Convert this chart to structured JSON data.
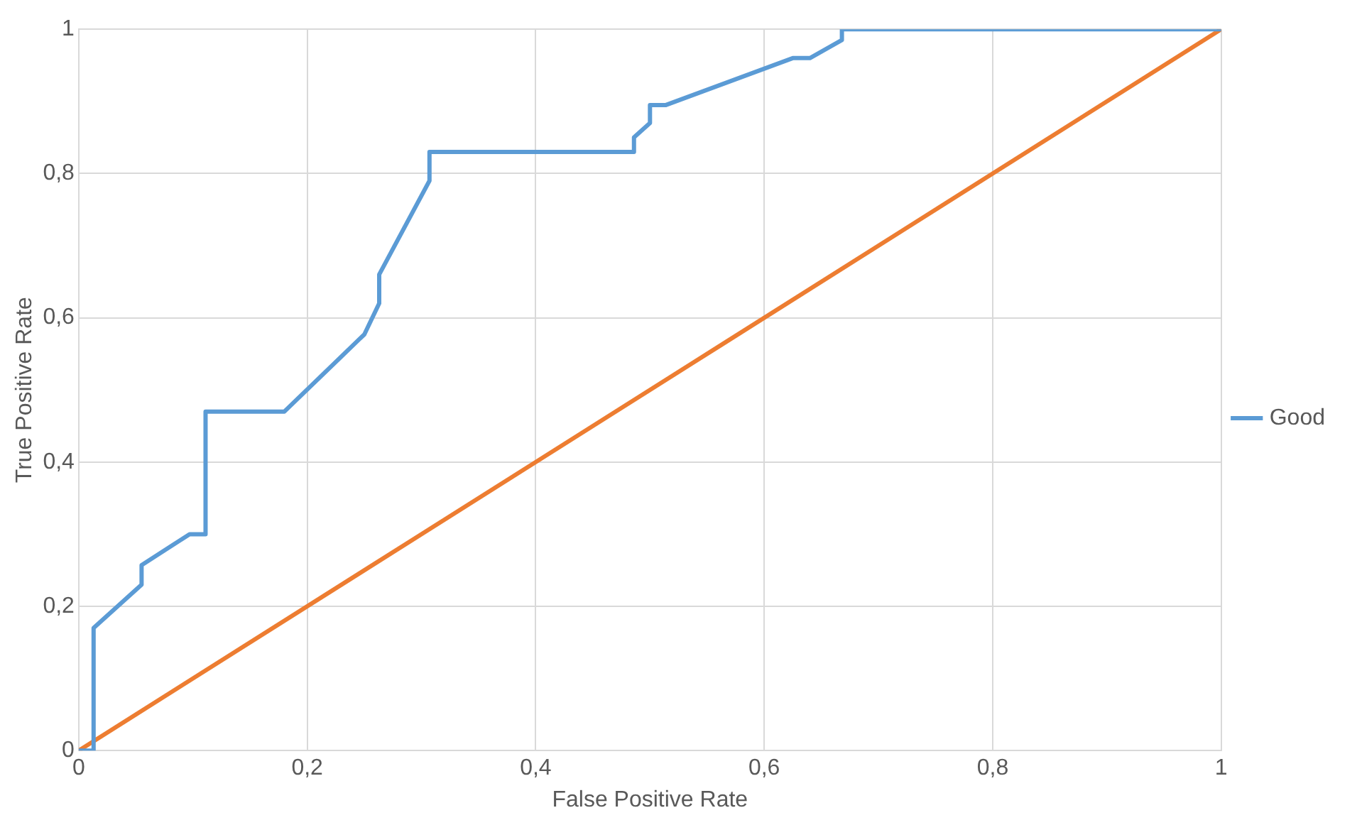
{
  "chart_data": {
    "type": "line",
    "xlabel": "False Positive Rate",
    "ylabel": "True Positive Rate",
    "xlim": [
      0,
      1
    ],
    "ylim": [
      0,
      1
    ],
    "xticks": [
      0,
      {
        "value": 0.2,
        "label": "0,2"
      },
      {
        "value": 0.4,
        "label": "0,4"
      },
      {
        "value": 0.6,
        "label": "0,6"
      },
      {
        "value": 0.8,
        "label": "0,8"
      },
      1
    ],
    "yticks": [
      0,
      {
        "value": 0.2,
        "label": "0,2"
      },
      {
        "value": 0.4,
        "label": "0,4"
      },
      {
        "value": 0.6,
        "label": "0,6"
      },
      {
        "value": 0.8,
        "label": "0,8"
      },
      1
    ],
    "grid": true,
    "legend": "right",
    "marker": "none",
    "line_style": "solid",
    "series": [
      {
        "name": "Good",
        "color": "#5b9bd5",
        "x": [
          0,
          0.013,
          0.013,
          0.055,
          0.055,
          0.097,
          0.111,
          0.111,
          0.18,
          0.25,
          0.263,
          0.263,
          0.307,
          0.307,
          0.486,
          0.486,
          0.5,
          0.5,
          0.514,
          0.625,
          0.64,
          0.668,
          0.668,
          1
        ],
        "values": [
          0,
          0,
          0.17,
          0.23,
          0.257,
          0.3,
          0.3,
          0.47,
          0.47,
          0.577,
          0.62,
          0.66,
          0.79,
          0.83,
          0.83,
          0.85,
          0.87,
          0.895,
          0.895,
          0.96,
          0.96,
          0.985,
          1,
          1
        ]
      },
      {
        "color": "#ed7d31",
        "x": [
          0,
          1
        ],
        "values": [
          0,
          1
        ]
      }
    ]
  }
}
